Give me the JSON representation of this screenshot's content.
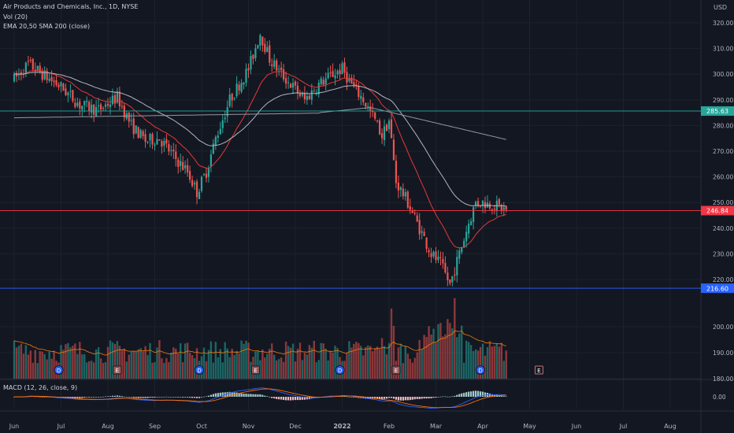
{
  "header": {
    "title": "Air Products and Chemicals, Inc., 1D, NYSE",
    "vol_label": "Vol (20)",
    "ma_label": "EMA 20,50 SMA 200 (close)",
    "macd_label": "MACD (12, 26, close, 9)",
    "currency": "USD"
  },
  "colors": {
    "background": "#131722",
    "up": "#26a69a",
    "down": "#ef5350",
    "ema20": "#e53935",
    "ema50": "#b2b5be",
    "sma200": "#9598a1",
    "support_line": "#2962ff",
    "resistance_line": "#26a69a",
    "last_price": "#f23645"
  },
  "price_axis": {
    "ticks": [
      {
        "v": 320,
        "label": "320.00"
      },
      {
        "v": 310,
        "label": "310.00"
      },
      {
        "v": 300,
        "label": "300.00"
      },
      {
        "v": 290,
        "label": "290.00"
      },
      {
        "v": 280,
        "label": "280.00"
      },
      {
        "v": 270,
        "label": "270.00"
      },
      {
        "v": 260,
        "label": "260.00"
      },
      {
        "v": 250,
        "label": "250.00"
      },
      {
        "v": 240,
        "label": "240.00"
      },
      {
        "v": 230,
        "label": "230.00"
      },
      {
        "v": 220,
        "label": "220.00"
      },
      {
        "v": 200,
        "label": "200.00"
      },
      {
        "v": 190,
        "label": "190.00"
      },
      {
        "v": 180,
        "label": "180.00"
      }
    ],
    "macd_tick": "0.00"
  },
  "time_axis": [
    "Jun",
    "Jul",
    "Aug",
    "Sep",
    "Oct",
    "Nov",
    "Dec",
    "2022",
    "Feb",
    "Mar",
    "Apr",
    "May",
    "Jun",
    "Jul",
    "Aug"
  ],
  "levels": [
    {
      "value": 285.63,
      "label": "285.63",
      "color": "#26a69a"
    },
    {
      "value": 246.84,
      "label": "246.84",
      "color": "#f23645"
    },
    {
      "value": 216.6,
      "label": "216.60",
      "color": "#2962ff"
    }
  ],
  "markers": [
    {
      "letter": "D",
      "month_pos": 0.95,
      "kind": "dividend"
    },
    {
      "letter": "E",
      "month_pos": 2.2,
      "kind": "earnings"
    },
    {
      "letter": "D",
      "month_pos": 3.95,
      "kind": "dividend"
    },
    {
      "letter": "E",
      "month_pos": 5.15,
      "kind": "earnings"
    },
    {
      "letter": "D",
      "month_pos": 6.95,
      "kind": "dividend"
    },
    {
      "letter": "E",
      "month_pos": 8.15,
      "kind": "earnings"
    },
    {
      "letter": "D",
      "month_pos": 9.95,
      "kind": "dividend"
    },
    {
      "letter": "E",
      "month_pos": 11.2,
      "kind": "earnings-upcoming"
    }
  ],
  "chart_data": {
    "type": "candlestick",
    "symbol": "Air Products and Chemicals, Inc.",
    "interval": "1D",
    "exchange": "NYSE",
    "x_unit": "months since Jun 1 2021 (0 = Jun 2021)",
    "ylim": [
      178,
      324
    ],
    "price_path": [
      [
        0.0,
        298
      ],
      [
        0.3,
        304
      ],
      [
        0.6,
        300
      ],
      [
        1.0,
        295
      ],
      [
        1.4,
        288
      ],
      [
        1.8,
        286
      ],
      [
        2.2,
        291
      ],
      [
        2.5,
        280
      ],
      [
        2.8,
        274
      ],
      [
        3.1,
        275
      ],
      [
        3.4,
        268
      ],
      [
        3.7,
        262
      ],
      [
        3.9,
        254
      ],
      [
        4.1,
        262
      ],
      [
        4.3,
        275
      ],
      [
        4.6,
        290
      ],
      [
        5.0,
        302
      ],
      [
        5.25,
        316
      ],
      [
        5.45,
        306
      ],
      [
        5.7,
        300
      ],
      [
        6.0,
        294
      ],
      [
        6.2,
        290
      ],
      [
        6.5,
        296
      ],
      [
        6.8,
        300
      ],
      [
        7.0,
        302
      ],
      [
        7.2,
        296
      ],
      [
        7.45,
        290
      ],
      [
        7.7,
        282
      ],
      [
        7.85,
        276
      ],
      [
        8.0,
        282
      ],
      [
        8.15,
        258
      ],
      [
        8.4,
        250
      ],
      [
        8.7,
        238
      ],
      [
        8.9,
        230
      ],
      [
        9.1,
        226
      ],
      [
        9.3,
        218
      ],
      [
        9.5,
        230
      ],
      [
        9.7,
        242
      ],
      [
        9.85,
        250
      ],
      [
        10.0,
        250
      ],
      [
        10.25,
        249
      ],
      [
        10.5,
        247
      ]
    ],
    "volume_ylim": [
      180,
      212
    ],
    "volume_notes": "histogram, spikes near late Jan and mid Mar 2022",
    "series": [
      {
        "name": "EMA 20",
        "color": "#e53935"
      },
      {
        "name": "EMA 50",
        "color": "#b2b5be"
      },
      {
        "name": "SMA 200",
        "color": "#9598a1"
      },
      {
        "name": "Vol (20)"
      },
      {
        "name": "MACD (12, 26, close, 9)"
      }
    ]
  }
}
